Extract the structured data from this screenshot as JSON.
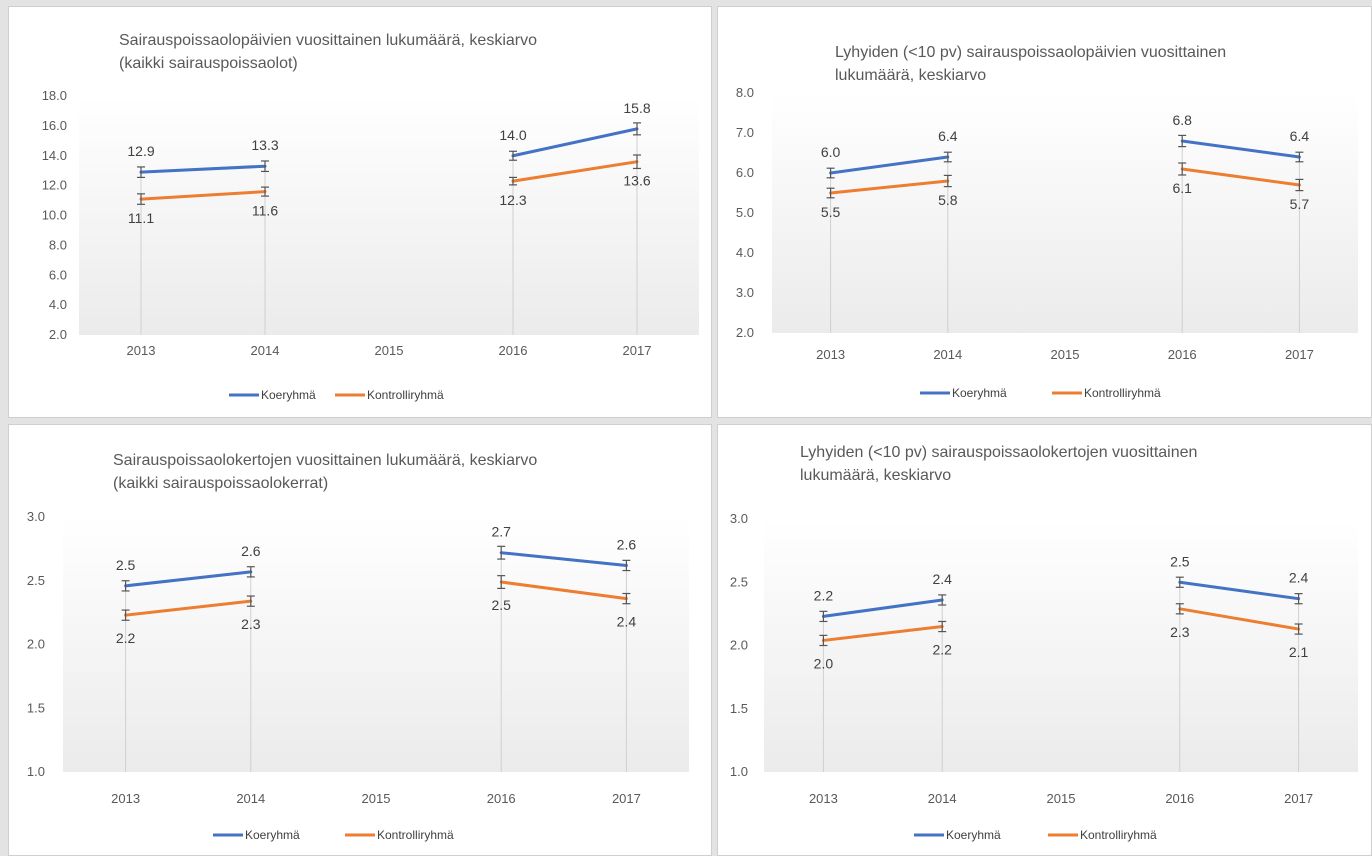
{
  "colors": {
    "series1": "#4472c4",
    "series2": "#ed7d31",
    "guide": "#d0d0d0",
    "errbar": "#555555"
  },
  "charts": [
    {
      "title_lines": [
        "Sairauspoissaolopäivien vuosittainen lukumäärä, keskiarvo",
        "(kaikki sairauspoissaolot)"
      ],
      "legend": [
        "Koeryhmä",
        "Kontrolliryhmä"
      ]
    },
    {
      "title_lines": [
        "Lyhyiden (<10 pv) sairauspoissaolopäivien vuosittainen",
        "lukumäärä, keskiarvo"
      ],
      "legend": [
        "Koeryhmä",
        "Kontrolliryhmä"
      ]
    },
    {
      "title_lines": [
        "Sairauspoissaolokertojen vuosittainen lukumäärä, keskiarvo",
        "(kaikki sairauspoissaolokerrat)"
      ],
      "legend": [
        "Koeryhmä",
        "Kontrolliryhmä"
      ]
    },
    {
      "title_lines": [
        "Lyhyiden (<10 pv) sairauspoissaolokertojen vuosittainen",
        "lukumäärä, keskiarvo"
      ],
      "legend": [
        "Koeryhmä",
        "Kontrolliryhmä"
      ]
    }
  ],
  "chart_data": [
    {
      "type": "line",
      "title": "Sairauspoissaolopäivien vuosittainen lukumäärä, keskiarvo (kaikki sairauspoissaolot)",
      "categories": [
        "2013",
        "2014",
        "2015",
        "2016",
        "2017"
      ],
      "yticks": [
        "2.0",
        "4.0",
        "6.0",
        "8.0",
        "10.0",
        "12.0",
        "14.0",
        "16.0",
        "18.0"
      ],
      "ylim": [
        2,
        18
      ],
      "series": [
        {
          "name": "Koeryhmä",
          "values": [
            12.9,
            13.3,
            null,
            14.0,
            15.8
          ],
          "labels": [
            "12.9",
            "13.3",
            "",
            "14.0",
            "15.8"
          ],
          "err": [
            0.35,
            0.35,
            null,
            0.3,
            0.4
          ]
        },
        {
          "name": "Kontrolliryhmä",
          "values": [
            11.1,
            11.6,
            null,
            12.3,
            13.6
          ],
          "labels": [
            "11.1",
            "11.6",
            "",
            "12.3",
            "13.6"
          ],
          "err": [
            0.35,
            0.3,
            null,
            0.25,
            0.45
          ]
        }
      ],
      "legend_position": "bottom",
      "grid": false
    },
    {
      "type": "line",
      "title": "Lyhyiden (<10 pv) sairauspoissaolopäivien vuosittainen lukumäärä, keskiarvo",
      "categories": [
        "2013",
        "2014",
        "2015",
        "2016",
        "2017"
      ],
      "yticks": [
        "2.0",
        "3.0",
        "4.0",
        "5.0",
        "6.0",
        "7.0",
        "8.0"
      ],
      "ylim": [
        2,
        8
      ],
      "series": [
        {
          "name": "Koeryhmä",
          "values": [
            6.0,
            6.4,
            null,
            6.8,
            6.4
          ],
          "labels": [
            "6.0",
            "6.4",
            "",
            "6.8",
            "6.4"
          ],
          "err": [
            0.12,
            0.12,
            null,
            0.14,
            0.12
          ]
        },
        {
          "name": "Kontrolliryhmä",
          "values": [
            5.5,
            5.8,
            null,
            6.1,
            5.7
          ],
          "labels": [
            "5.5",
            "5.8",
            "",
            "6.1",
            "5.7"
          ],
          "err": [
            0.12,
            0.14,
            null,
            0.15,
            0.14
          ]
        }
      ],
      "legend_position": "bottom",
      "grid": false
    },
    {
      "type": "line",
      "title": "Sairauspoissaolokertojen vuosittainen lukumäärä, keskiarvo (kaikki sairauspoissaolokerrat)",
      "categories": [
        "2013",
        "2014",
        "2015",
        "2016",
        "2017"
      ],
      "yticks": [
        "1.0",
        "1.5",
        "2.0",
        "2.5",
        "3.0"
      ],
      "ylim": [
        1,
        3
      ],
      "series": [
        {
          "name": "Koeryhmä",
          "values": [
            2.46,
            2.57,
            null,
            2.72,
            2.62
          ],
          "labels": [
            "2.5",
            "2.6",
            "",
            "2.7",
            "2.6"
          ],
          "err": [
            0.04,
            0.04,
            null,
            0.05,
            0.04
          ]
        },
        {
          "name": "Kontrolliryhmä",
          "values": [
            2.23,
            2.34,
            null,
            2.49,
            2.36
          ],
          "labels": [
            "2.2",
            "2.3",
            "",
            "2.5",
            "2.4"
          ],
          "err": [
            0.04,
            0.04,
            null,
            0.05,
            0.04
          ]
        }
      ],
      "legend_position": "bottom",
      "grid": false
    },
    {
      "type": "line",
      "title": "Lyhyiden (<10 pv) sairauspoissaolokertojen vuosittainen lukumäärä, keskiarvo",
      "categories": [
        "2013",
        "2014",
        "2015",
        "2016",
        "2017"
      ],
      "yticks": [
        "1.0",
        "1.5",
        "2.0",
        "2.5",
        "3.0"
      ],
      "ylim": [
        1,
        3
      ],
      "series": [
        {
          "name": "Koeryhmä",
          "values": [
            2.23,
            2.36,
            null,
            2.5,
            2.37
          ],
          "labels": [
            "2.2",
            "2.4",
            "",
            "2.5",
            "2.4"
          ],
          "err": [
            0.04,
            0.04,
            null,
            0.04,
            0.04
          ]
        },
        {
          "name": "Kontrolliryhmä",
          "values": [
            2.04,
            2.15,
            null,
            2.29,
            2.13
          ],
          "labels": [
            "2.0",
            "2.2",
            "",
            "2.3",
            "2.1"
          ],
          "err": [
            0.04,
            0.04,
            null,
            0.04,
            0.04
          ]
        }
      ],
      "legend_position": "bottom",
      "grid": false
    }
  ]
}
